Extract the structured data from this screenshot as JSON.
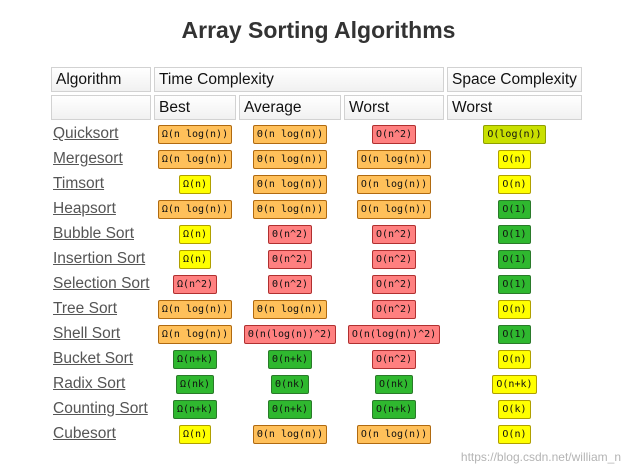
{
  "title": "Array Sorting Algorithms",
  "headers": {
    "algorithm": "Algorithm",
    "time_complexity": "Time Complexity",
    "space_complexity": "Space Complexity",
    "best": "Best",
    "average": "Average",
    "worst": "Worst",
    "space_worst": "Worst"
  },
  "rating_colors": {
    "good": "#2fb82f",
    "fair": "#ffff00",
    "ok": "#c9e000",
    "mid": "#ffc05a",
    "bad": "#ff8080"
  },
  "rows": [
    {
      "name": "Quicksort",
      "best": {
        "text": "Ω(n log(n))",
        "rating": "mid"
      },
      "average": {
        "text": "Θ(n log(n))",
        "rating": "mid"
      },
      "worst": {
        "text": "O(n^2)",
        "rating": "bad"
      },
      "space": {
        "text": "O(log(n))",
        "rating": "ok"
      }
    },
    {
      "name": "Mergesort",
      "best": {
        "text": "Ω(n log(n))",
        "rating": "mid"
      },
      "average": {
        "text": "Θ(n log(n))",
        "rating": "mid"
      },
      "worst": {
        "text": "O(n log(n))",
        "rating": "mid"
      },
      "space": {
        "text": "O(n)",
        "rating": "fair"
      }
    },
    {
      "name": "Timsort",
      "best": {
        "text": "Ω(n)",
        "rating": "fair"
      },
      "average": {
        "text": "Θ(n log(n))",
        "rating": "mid"
      },
      "worst": {
        "text": "O(n log(n))",
        "rating": "mid"
      },
      "space": {
        "text": "O(n)",
        "rating": "fair"
      }
    },
    {
      "name": "Heapsort",
      "best": {
        "text": "Ω(n log(n))",
        "rating": "mid"
      },
      "average": {
        "text": "Θ(n log(n))",
        "rating": "mid"
      },
      "worst": {
        "text": "O(n log(n))",
        "rating": "mid"
      },
      "space": {
        "text": "O(1)",
        "rating": "good"
      }
    },
    {
      "name": "Bubble Sort",
      "best": {
        "text": "Ω(n)",
        "rating": "fair"
      },
      "average": {
        "text": "Θ(n^2)",
        "rating": "bad"
      },
      "worst": {
        "text": "O(n^2)",
        "rating": "bad"
      },
      "space": {
        "text": "O(1)",
        "rating": "good"
      }
    },
    {
      "name": "Insertion Sort",
      "best": {
        "text": "Ω(n)",
        "rating": "fair"
      },
      "average": {
        "text": "Θ(n^2)",
        "rating": "bad"
      },
      "worst": {
        "text": "O(n^2)",
        "rating": "bad"
      },
      "space": {
        "text": "O(1)",
        "rating": "good"
      }
    },
    {
      "name": "Selection Sort",
      "best": {
        "text": "Ω(n^2)",
        "rating": "bad"
      },
      "average": {
        "text": "Θ(n^2)",
        "rating": "bad"
      },
      "worst": {
        "text": "O(n^2)",
        "rating": "bad"
      },
      "space": {
        "text": "O(1)",
        "rating": "good"
      }
    },
    {
      "name": "Tree Sort",
      "best": {
        "text": "Ω(n log(n))",
        "rating": "mid"
      },
      "average": {
        "text": "Θ(n log(n))",
        "rating": "mid"
      },
      "worst": {
        "text": "O(n^2)",
        "rating": "bad"
      },
      "space": {
        "text": "O(n)",
        "rating": "fair"
      }
    },
    {
      "name": "Shell Sort",
      "best": {
        "text": "Ω(n log(n))",
        "rating": "mid"
      },
      "average": {
        "text": "Θ(n(log(n))^2)",
        "rating": "bad"
      },
      "worst": {
        "text": "O(n(log(n))^2)",
        "rating": "bad"
      },
      "space": {
        "text": "O(1)",
        "rating": "good"
      }
    },
    {
      "name": "Bucket Sort",
      "best": {
        "text": "Ω(n+k)",
        "rating": "good"
      },
      "average": {
        "text": "Θ(n+k)",
        "rating": "good"
      },
      "worst": {
        "text": "O(n^2)",
        "rating": "bad"
      },
      "space": {
        "text": "O(n)",
        "rating": "fair"
      }
    },
    {
      "name": "Radix Sort",
      "best": {
        "text": "Ω(nk)",
        "rating": "good"
      },
      "average": {
        "text": "Θ(nk)",
        "rating": "good"
      },
      "worst": {
        "text": "O(nk)",
        "rating": "good"
      },
      "space": {
        "text": "O(n+k)",
        "rating": "fair"
      }
    },
    {
      "name": "Counting Sort",
      "best": {
        "text": "Ω(n+k)",
        "rating": "good"
      },
      "average": {
        "text": "Θ(n+k)",
        "rating": "good"
      },
      "worst": {
        "text": "O(n+k)",
        "rating": "good"
      },
      "space": {
        "text": "O(k)",
        "rating": "fair"
      }
    },
    {
      "name": "Cubesort",
      "best": {
        "text": "Ω(n)",
        "rating": "fair"
      },
      "average": {
        "text": "Θ(n log(n))",
        "rating": "mid"
      },
      "worst": {
        "text": "O(n log(n))",
        "rating": "mid"
      },
      "space": {
        "text": "O(n)",
        "rating": "fair"
      }
    }
  ],
  "watermark": "https://blog.csdn.net/william_n"
}
